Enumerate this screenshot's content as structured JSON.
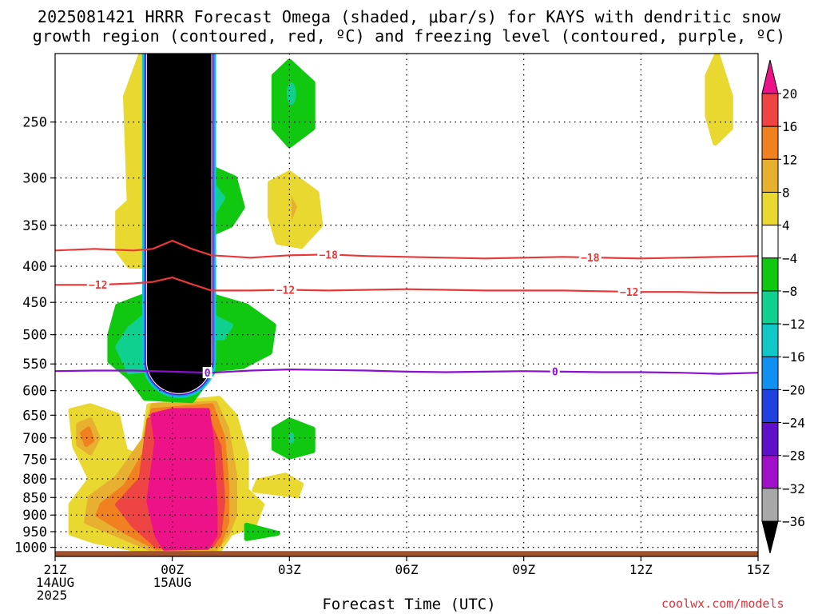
{
  "title_line1": "2025081421 HRRR Forecast Omega (shaded, μbar/s) for KAYS with dendritic snow",
  "title_line2": "growth region (contoured, red, ºC) and freezing level (contoured, purple, ºC)",
  "credit": "coolwx.com/models",
  "chart_data": {
    "type": "heatmap",
    "title": "2025081421 HRRR Forecast Omega (shaded, μbar/s) for KAYS with dendritic snow growth region (contoured, red, ºC) and freezing level (contoured, purple, ºC)",
    "xlabel": "Forecast Time (UTC)",
    "ylabel": "",
    "x_range_hours": [
      0,
      18
    ],
    "x_ticks": [
      {
        "hour": 0,
        "lines": [
          "21Z",
          "14AUG",
          "2025"
        ]
      },
      {
        "hour": 3,
        "lines": [
          "00Z",
          "15AUG"
        ]
      },
      {
        "hour": 6,
        "lines": [
          "03Z"
        ]
      },
      {
        "hour": 9,
        "lines": [
          "06Z"
        ]
      },
      {
        "hour": 12,
        "lines": [
          "09Z"
        ]
      },
      {
        "hour": 15,
        "lines": [
          "12Z"
        ]
      },
      {
        "hour": 18,
        "lines": [
          "15Z"
        ]
      }
    ],
    "y_axis": "pressure (log, inverted)",
    "y_range_mb": [
      1030,
      200
    ],
    "y_ticks": [
      "250",
      "300",
      "350",
      "400",
      "450",
      "500",
      "550",
      "600",
      "650",
      "700",
      "750",
      "800",
      "850",
      "900",
      "950",
      "1000"
    ],
    "grid": true,
    "colorbar": {
      "labels": [
        "20",
        "16",
        "12",
        "8",
        "4",
        "−4",
        "−8",
        "−12",
        "−16",
        "−20",
        "−24",
        "−28",
        "−32",
        "−36"
      ],
      "colors": [
        "#ee1288",
        "#ef4444",
        "#f08020",
        "#e8b030",
        "#e8d830",
        "#ffffff",
        "#10c810",
        "#10d090",
        "#10c8c8",
        "#1090f0",
        "#2040e0",
        "#6010c8",
        "#a010c8",
        "#a8a8a8",
        "#000000"
      ],
      "top_arrow_color": "#ee1288",
      "bottom_arrow_color": "#000000"
    },
    "omega_features": [
      {
        "label": "strong ascent column",
        "class": "<=-36",
        "color": "#000000",
        "hours": [
          2.3,
          4.0
        ],
        "pressure_mb": [
          200,
          605
        ]
      },
      {
        "label": "strong descent core",
        "class": ">=20",
        "color": "#ee1288",
        "hours": [
          2.5,
          4.0
        ],
        "pressure_mb": [
          640,
          1015
        ]
      },
      {
        "label": "ascent region",
        "class": "-4 to -8",
        "color": "#10c810",
        "hours": [
          1.3,
          5.6
        ],
        "pressure_mb": [
          450,
          610
        ]
      },
      {
        "label": "ascent pocket",
        "class": "-4 to -8",
        "color": "#10c810",
        "hours": [
          5.5,
          6.8
        ],
        "pressure_mb": [
          210,
          265
        ]
      },
      {
        "label": "ascent pocket",
        "class": "-4 to -8",
        "color": "#10c810",
        "hours": [
          5.5,
          6.7
        ],
        "pressure_mb": [
          650,
          740
        ]
      },
      {
        "label": "descent pocket",
        "class": "4 to 8",
        "color": "#e8d830",
        "hours": [
          5.5,
          6.7
        ],
        "pressure_mb": [
          300,
          370
        ]
      },
      {
        "label": "descent pocket",
        "class": "4 to 8",
        "color": "#e8d830",
        "hours": [
          16.7,
          17.3
        ],
        "pressure_mb": [
          200,
          265
        ]
      }
    ],
    "series": [
      {
        "name": "-18",
        "color": "#e83838",
        "x": [
          0,
          1,
          2,
          2.5,
          3.0,
          3.5,
          4.0,
          5,
          6,
          7,
          8,
          9,
          10,
          11,
          12,
          13,
          14,
          15,
          16,
          17,
          18
        ],
        "y": [
          380,
          378,
          380,
          378,
          368,
          378,
          386,
          389,
          386,
          385,
          387,
          388,
          389,
          390,
          389,
          388,
          389,
          390,
          389,
          388,
          387
        ]
      },
      {
        "name": "-12",
        "color": "#e83838",
        "x": [
          0,
          1,
          2,
          2.5,
          3.0,
          3.5,
          4.0,
          5,
          6,
          7,
          8,
          9,
          10,
          11,
          12,
          13,
          14,
          15,
          16,
          17,
          18
        ],
        "y": [
          425,
          425,
          423,
          421,
          415,
          424,
          433,
          433,
          432,
          433,
          432,
          431,
          432,
          433,
          433,
          433,
          434,
          435,
          435,
          436,
          436
        ]
      },
      {
        "name": "0",
        "color": "#8a10d0",
        "x": [
          0,
          1,
          2,
          3,
          4,
          5,
          6,
          7,
          8,
          9,
          10,
          11,
          12,
          13,
          14,
          15,
          16,
          17,
          18
        ],
        "y": [
          563,
          562,
          562,
          564,
          566,
          562,
          560,
          561,
          562,
          564,
          565,
          564,
          563,
          564,
          565,
          565,
          566,
          568,
          566
        ]
      }
    ],
    "contour_labels": [
      {
        "text": "−18",
        "series": "-18",
        "hour": 7.0
      },
      {
        "text": "−18",
        "series": "-18",
        "hour": 13.7
      },
      {
        "text": "−12",
        "series": "-12",
        "hour": 1.1
      },
      {
        "text": "−12",
        "series": "-12",
        "hour": 5.9
      },
      {
        "text": "−12",
        "series": "-12",
        "hour": 14.7
      },
      {
        "text": "0",
        "series": "0",
        "hour": 3.9
      },
      {
        "text": "0",
        "series": "0",
        "hour": 12.8
      }
    ],
    "terrain_color": "#a0522d",
    "terrain_top_mb": 1012
  }
}
